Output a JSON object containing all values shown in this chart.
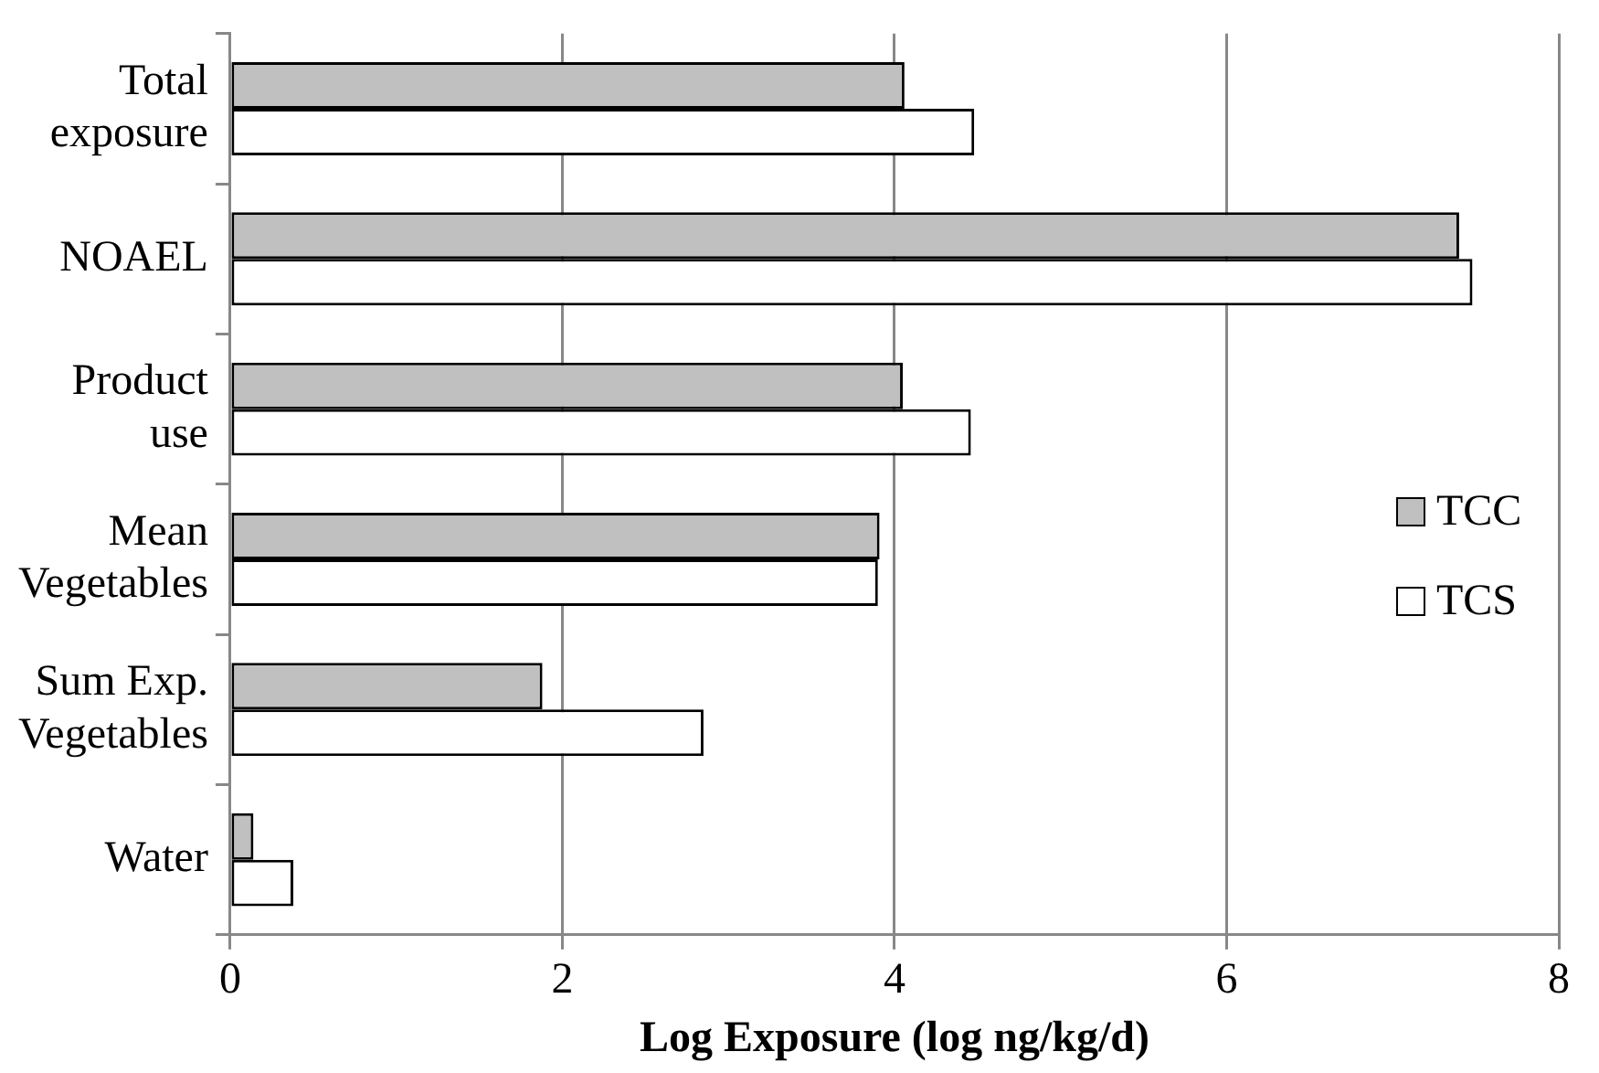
{
  "chart_data": {
    "type": "bar",
    "orientation": "horizontal",
    "xlabel": "Log Exposure (log ng/kg/d)",
    "categories": [
      "Total exposure",
      "NOAEL",
      "Product use",
      "Mean Vegetables",
      "Sum Exp. Vegetables",
      "Water"
    ],
    "series": [
      {
        "name": "TCC",
        "color": "#c0c0c0",
        "values": [
          4.06,
          7.4,
          4.05,
          3.91,
          1.88,
          0.14
        ]
      },
      {
        "name": "TCS",
        "color": "#ffffff",
        "values": [
          4.48,
          7.48,
          4.46,
          3.9,
          2.85,
          0.38
        ]
      }
    ],
    "xlim": [
      0,
      8
    ],
    "xticks": [
      0,
      2,
      4,
      6,
      8
    ],
    "grid": "x",
    "legend": "right"
  }
}
